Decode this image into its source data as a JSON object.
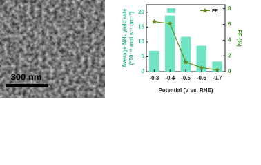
{
  "image": {
    "scale_bar": "300 nm"
  },
  "chart_data": {
    "type": "bar",
    "xlabel": "Potential (V vs. RHE)",
    "ylabel": [
      "Average NH₃ yield rate",
      "(*10⁻¹¹ mol s⁻¹ cm⁻²)"
    ],
    "y2label": "FE (%)",
    "categories": [
      "-0.3",
      "-0.4",
      "-0.5",
      "-0.6",
      "-0.7"
    ],
    "series": [
      {
        "name": "NH₃ yield",
        "color": "#6fe3c3",
        "values": [
          7,
          18.9,
          11.7,
          8.7,
          3.4
        ]
      },
      {
        "name": "FE",
        "color": "#5e8a1c",
        "type": "line",
        "axis": "y2",
        "values": [
          6.35,
          6.1,
          1.2,
          0.5,
          0.2
        ]
      }
    ],
    "ylim": [
      0,
      22.5
    ],
    "yticks": [
      0,
      5,
      10,
      15,
      20
    ],
    "y2lim": [
      0,
      8.5
    ],
    "y2ticks": [
      0,
      2,
      4,
      6,
      8
    ]
  }
}
